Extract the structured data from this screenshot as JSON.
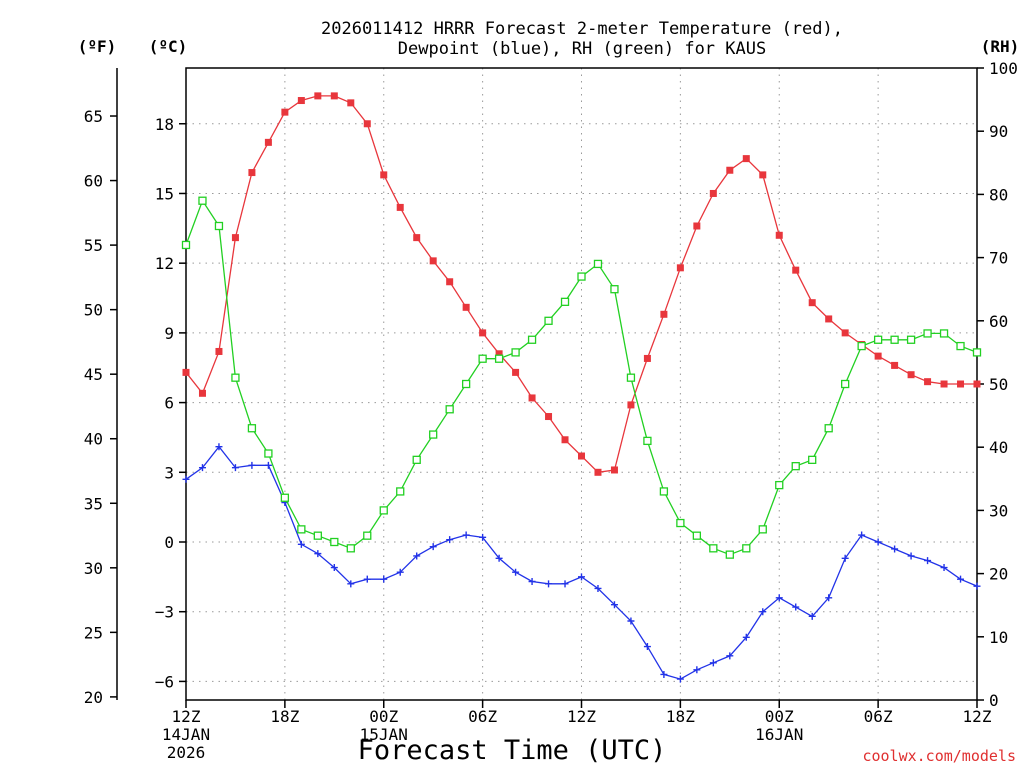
{
  "chart_data": {
    "type": "line",
    "title_line1": "2026011412 HRRR Forecast 2-meter Temperature (red),",
    "title_line2": "Dewpoint (blue), RH (green) for KAUS",
    "xlabel": "Forecast Time (UTC)",
    "unit_f": "(ºF)",
    "unit_c": "(ºC)",
    "unit_rh": "(RH)",
    "credit": "coolwx.com/models",
    "x_range_hours": [
      0,
      48
    ],
    "x_ticks": [
      {
        "hour": 0,
        "lines": [
          "12Z",
          "14JAN",
          "2026"
        ]
      },
      {
        "hour": 6,
        "lines": [
          "18Z"
        ]
      },
      {
        "hour": 12,
        "lines": [
          "00Z",
          "15JAN"
        ]
      },
      {
        "hour": 18,
        "lines": [
          "06Z"
        ]
      },
      {
        "hour": 24,
        "lines": [
          "12Z"
        ]
      },
      {
        "hour": 30,
        "lines": [
          "18Z"
        ]
      },
      {
        "hour": 36,
        "lines": [
          "00Z",
          "16JAN"
        ]
      },
      {
        "hour": 42,
        "lines": [
          "06Z"
        ]
      },
      {
        "hour": 48,
        "lines": [
          "12Z"
        ]
      }
    ],
    "y_celsius": {
      "min": -6.8,
      "max": 20.4,
      "ticks": [
        -6,
        -3,
        0,
        3,
        6,
        9,
        12,
        15,
        18
      ]
    },
    "y_fahrenheit": {
      "ticks": [
        20,
        25,
        30,
        35,
        40,
        45,
        50,
        55,
        60,
        65
      ]
    },
    "y_rh": {
      "min": 0,
      "max": 100,
      "ticks": [
        0,
        10,
        20,
        30,
        40,
        50,
        60,
        70,
        80,
        90,
        100
      ]
    },
    "grid": true,
    "forecast_hours": [
      0,
      1,
      2,
      3,
      4,
      5,
      6,
      7,
      8,
      9,
      10,
      11,
      12,
      13,
      14,
      15,
      16,
      17,
      18,
      19,
      20,
      21,
      22,
      23,
      24,
      25,
      26,
      27,
      28,
      29,
      30,
      31,
      32,
      33,
      34,
      35,
      36,
      37,
      38,
      39,
      40,
      41,
      42,
      43,
      44,
      45,
      46,
      47,
      48
    ],
    "series": [
      {
        "name": "Temperature",
        "color": "#e8363c",
        "marker": "filled-square",
        "values_c": [
          7.3,
          6.4,
          8.2,
          13.1,
          15.9,
          17.2,
          18.5,
          19.0,
          19.2,
          19.2,
          18.9,
          18.0,
          15.8,
          14.4,
          13.1,
          12.1,
          11.2,
          10.1,
          9.0,
          8.1,
          7.3,
          6.2,
          5.4,
          4.4,
          3.7,
          3.0,
          3.1,
          5.9,
          7.9,
          9.8,
          11.8,
          13.6,
          15.0,
          16.0,
          16.5,
          15.8,
          13.2,
          11.7,
          10.3,
          9.6,
          9.0,
          8.5,
          8.0,
          7.6,
          7.2,
          6.9,
          6.8,
          6.8,
          6.8
        ]
      },
      {
        "name": "Dewpoint",
        "color": "#2233e8",
        "marker": "plus",
        "values_c": [
          2.7,
          3.2,
          4.1,
          3.2,
          3.3,
          3.3,
          1.7,
          -0.1,
          -0.5,
          -1.1,
          -1.8,
          -1.6,
          -1.6,
          -1.3,
          -0.6,
          -0.2,
          0.1,
          0.3,
          0.2,
          -0.7,
          -1.3,
          -1.7,
          -1.8,
          -1.8,
          -1.5,
          -2.0,
          -2.7,
          -3.4,
          -4.5,
          -5.7,
          -5.9,
          -5.5,
          -5.2,
          -4.9,
          -4.1,
          -3.0,
          -2.4,
          -2.8,
          -3.2,
          -2.4,
          -0.7,
          0.3,
          0.0,
          -0.3,
          -0.6,
          -0.8,
          -1.1,
          -1.6,
          -1.9
        ]
      },
      {
        "name": "RH",
        "color": "#22d022",
        "marker": "open-square",
        "values_rh": [
          72,
          79,
          75,
          51,
          43,
          39,
          32,
          27,
          26,
          25,
          24,
          26,
          30,
          33,
          38,
          42,
          46,
          50,
          54,
          54,
          55,
          57,
          60,
          63,
          67,
          69,
          65,
          51,
          41,
          33,
          28,
          26,
          24,
          23,
          24,
          27,
          34,
          37,
          38,
          43,
          50,
          56,
          57,
          57,
          57,
          58,
          58,
          56,
          55
        ]
      }
    ]
  }
}
